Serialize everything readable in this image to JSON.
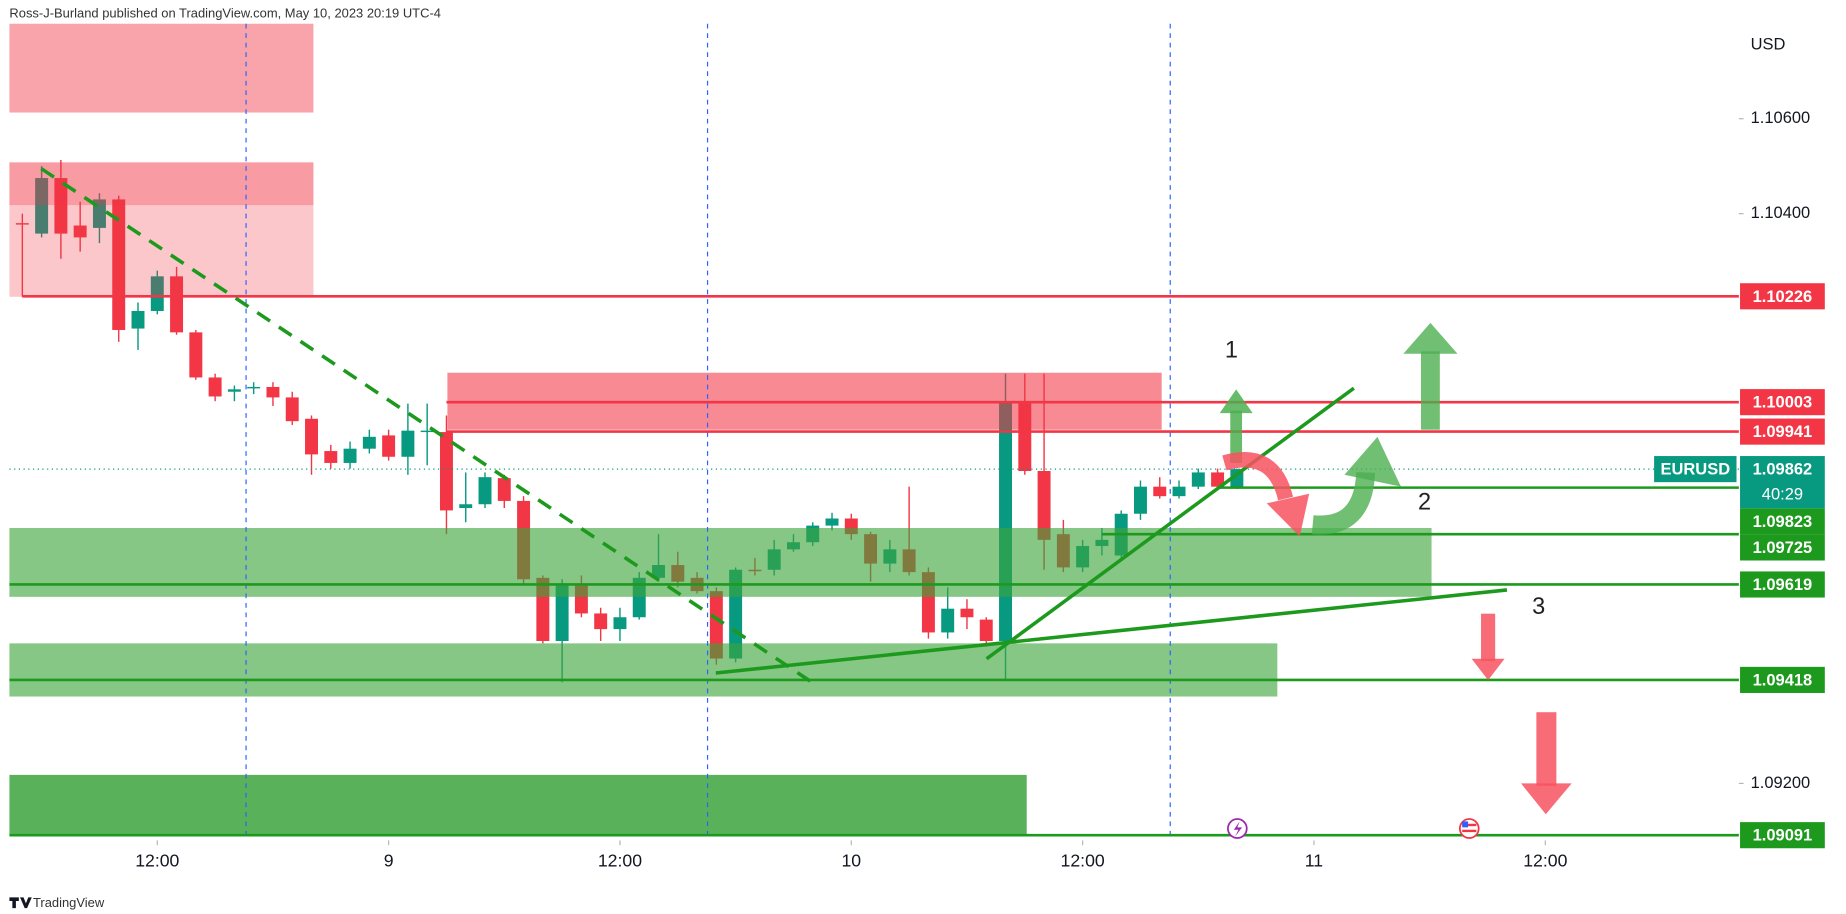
{
  "header": "Ross-J-Burland published on TradingView.com, May 10, 2023 20:19 UTC-4",
  "footer": "TradingView",
  "chart_data": {
    "type": "candlestick",
    "currency": "USD",
    "symbol": "EURUSD",
    "last_price": 1.09862,
    "countdown": "40:29",
    "up_color": "#089981",
    "down_color": "#f23645",
    "open": [
      1.1038,
      1.10358,
      1.10475,
      1.10375,
      1.1037,
      1.1043,
      1.10158,
      1.10195,
      1.10268,
      1.1015,
      1.10055,
      1.10025,
      1.10033,
      1.10035,
      1.10013,
      1.09968,
      1.099,
      1.09875,
      1.09905,
      1.09933,
      1.09888,
      1.0994,
      1.0994,
      1.0978,
      1.09788,
      1.09843,
      1.09795,
      1.09633,
      1.095,
      1.0962,
      1.09558,
      1.09525,
      1.0955,
      1.09633,
      1.0966,
      1.09633,
      1.09605,
      1.09463,
      1.0965,
      1.0965,
      1.09693,
      1.09708,
      1.09743,
      1.09758,
      1.09725,
      1.09663,
      1.09693,
      1.09645,
      1.09518,
      1.09568,
      1.09545,
      1.095,
      1.10005,
      1.09858,
      1.09725,
      1.09655,
      1.097,
      1.0968,
      1.09768,
      1.09825,
      1.09805,
      1.09825,
      1.09855,
      1.09825
    ],
    "high": [
      1.104,
      1.105,
      1.10513,
      1.10425,
      1.10443,
      1.10438,
      1.10213,
      1.1028,
      1.10288,
      1.10155,
      1.10063,
      1.10038,
      1.10045,
      1.10045,
      1.10025,
      1.09975,
      1.09913,
      1.0992,
      1.09945,
      1.09945,
      1.1,
      1.1,
      1.09975,
      1.09855,
      1.09855,
      1.0985,
      1.09805,
      1.09638,
      1.0963,
      1.09638,
      1.0957,
      1.0957,
      1.09645,
      1.09725,
      1.09688,
      1.09645,
      1.09613,
      1.09655,
      1.09675,
      1.09713,
      1.09725,
      1.0975,
      1.0977,
      1.09768,
      1.0973,
      1.09713,
      1.09825,
      1.09655,
      1.09613,
      1.09588,
      1.0955,
      1.10063,
      1.10063,
      1.10063,
      1.09755,
      1.09713,
      1.09738,
      1.09775,
      1.09838,
      1.09845,
      1.09838,
      1.09863,
      1.09863,
      1.09863
    ],
    "low": [
      1.10225,
      1.1035,
      1.10305,
      1.1032,
      1.10338,
      1.1013,
      1.10113,
      1.10188,
      1.10145,
      1.1005,
      1.10005,
      1.10005,
      1.1002,
      1.09995,
      1.09955,
      1.0985,
      1.09863,
      1.09863,
      1.09895,
      1.0988,
      1.0985,
      1.0987,
      1.09725,
      1.0975,
      1.0978,
      1.0978,
      1.0962,
      1.09495,
      1.09413,
      1.0955,
      1.095,
      1.095,
      1.09545,
      1.09625,
      1.09613,
      1.096,
      1.0945,
      1.09455,
      1.09638,
      1.09638,
      1.09688,
      1.097,
      1.09733,
      1.09713,
      1.09625,
      1.09645,
      1.09638,
      1.09505,
      1.09505,
      1.09525,
      1.09488,
      1.0942,
      1.0985,
      1.0965,
      1.09645,
      1.09645,
      1.0968,
      1.09675,
      1.09755,
      1.098,
      1.098,
      1.0982,
      1.0982,
      1.0982
    ],
    "close": [
      1.10378,
      1.10475,
      1.10358,
      1.1035,
      1.1043,
      1.10155,
      1.10195,
      1.10268,
      1.1015,
      1.10055,
      1.10015,
      1.1003,
      1.10035,
      1.10013,
      1.09963,
      1.09893,
      1.09875,
      1.09905,
      1.0993,
      1.09888,
      1.09943,
      1.09943,
      1.09775,
      1.09788,
      1.09845,
      1.09795,
      1.0963,
      1.095,
      1.0962,
      1.09558,
      1.09525,
      1.0955,
      1.09633,
      1.0966,
      1.09625,
      1.09605,
      1.09463,
      1.0965,
      1.09648,
      1.09693,
      1.09708,
      1.09743,
      1.09758,
      1.09725,
      1.09663,
      1.09693,
      1.09645,
      1.09518,
      1.09568,
      1.0955,
      1.095,
      1.10005,
      1.09858,
      1.09713,
      1.09655,
      1.097,
      1.09713,
      1.09768,
      1.09825,
      1.09805,
      1.09825,
      1.09855,
      1.09825,
      1.09862
    ],
    "xlim": [
      -0.67,
      89.04
    ],
    "xticks": [
      {
        "value": 7,
        "label": "12:00"
      },
      {
        "value": 19,
        "label": "9"
      },
      {
        "value": 31,
        "label": "12:00"
      },
      {
        "value": 43,
        "label": "10"
      },
      {
        "value": 55,
        "label": "12:00"
      },
      {
        "value": 67,
        "label": "11"
      },
      {
        "value": 79,
        "label": "12:00"
      }
    ],
    "ylim": [
      1.0908,
      1.108
    ],
    "yticks": [
      {
        "value": 1.106,
        "label": "1.10600"
      },
      {
        "value": 1.104,
        "label": "1.10400"
      },
      {
        "value": 1.092,
        "label": "1.09200"
      }
    ],
    "levels": [
      {
        "value": 1.10226,
        "color": "#f23645",
        "from": 0
      },
      {
        "value": 1.10003,
        "color": "#f23645",
        "from": 22
      },
      {
        "value": 1.09941,
        "color": "#f23645",
        "from": 22
      },
      {
        "value": 1.09823,
        "color": "#1d9a1d",
        "from": 62
      },
      {
        "value": 1.09725,
        "color": "#1d9a1d",
        "from": 56
      },
      {
        "value": 1.09619,
        "color": "#1d9a1d",
        "from": -0.67
      },
      {
        "value": 1.09418,
        "color": "#1d9a1d",
        "from": -0.67
      },
      {
        "value": 1.09091,
        "color": "#1d9a1d",
        "from": -0.67
      }
    ],
    "zones": [
      {
        "from": -0.67,
        "to": 15.1,
        "low": 1.10613,
        "high": 1.108,
        "color": "rgba(242,54,69,0.45)"
      },
      {
        "from": -0.67,
        "to": 15.1,
        "low": 1.10225,
        "high": 1.10508,
        "color": "rgba(242,54,69,0.28)"
      },
      {
        "from": -0.67,
        "to": 15.1,
        "low": 1.10418,
        "high": 1.10508,
        "color": "rgba(242,54,69,0.3)"
      },
      {
        "from": 22.05,
        "to": 59.1,
        "low": 1.09945,
        "high": 1.10065,
        "color": "rgba(242,54,69,0.58)"
      },
      {
        "from": -0.67,
        "to": 73.1,
        "low": 1.09593,
        "high": 1.09738,
        "color": "rgba(60,165,60,0.62)"
      },
      {
        "from": -0.67,
        "to": 65.1,
        "low": 1.09383,
        "high": 1.09495,
        "color": "rgba(60,165,60,0.62)"
      },
      {
        "from": -0.67,
        "to": 52.1,
        "low": 1.09093,
        "high": 1.09218,
        "color": "rgba(60,165,60,0.85)"
      }
    ],
    "annotations": [
      "1",
      "2",
      "3"
    ]
  }
}
